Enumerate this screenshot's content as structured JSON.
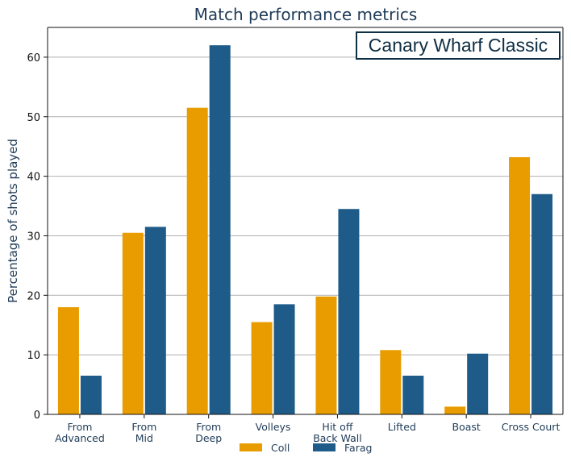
{
  "chart_data": {
    "type": "bar",
    "title": "Match performance metrics",
    "xlabel": "",
    "ylabel": "Percentage of shots played",
    "ylim": [
      0,
      65
    ],
    "yticks": [
      0,
      10,
      20,
      30,
      40,
      50,
      60
    ],
    "grid": true,
    "legend_position": "bottom",
    "annotation": "Canary Wharf Classic",
    "categories": [
      "From\nAdvanced",
      "From\nMid",
      "From\nDeep",
      "Volleys",
      "Hit off\nBack Wall",
      "Lifted",
      "Boast",
      "Cross Court"
    ],
    "series": [
      {
        "name": "Coll",
        "color": "#e89c00",
        "values": [
          18,
          30.5,
          51.5,
          15.5,
          19.8,
          10.8,
          1.3,
          43.2
        ]
      },
      {
        "name": "Farag",
        "color": "#1e5b88",
        "values": [
          6.5,
          31.5,
          62,
          18.5,
          34.5,
          6.5,
          10.2,
          37
        ]
      }
    ]
  }
}
